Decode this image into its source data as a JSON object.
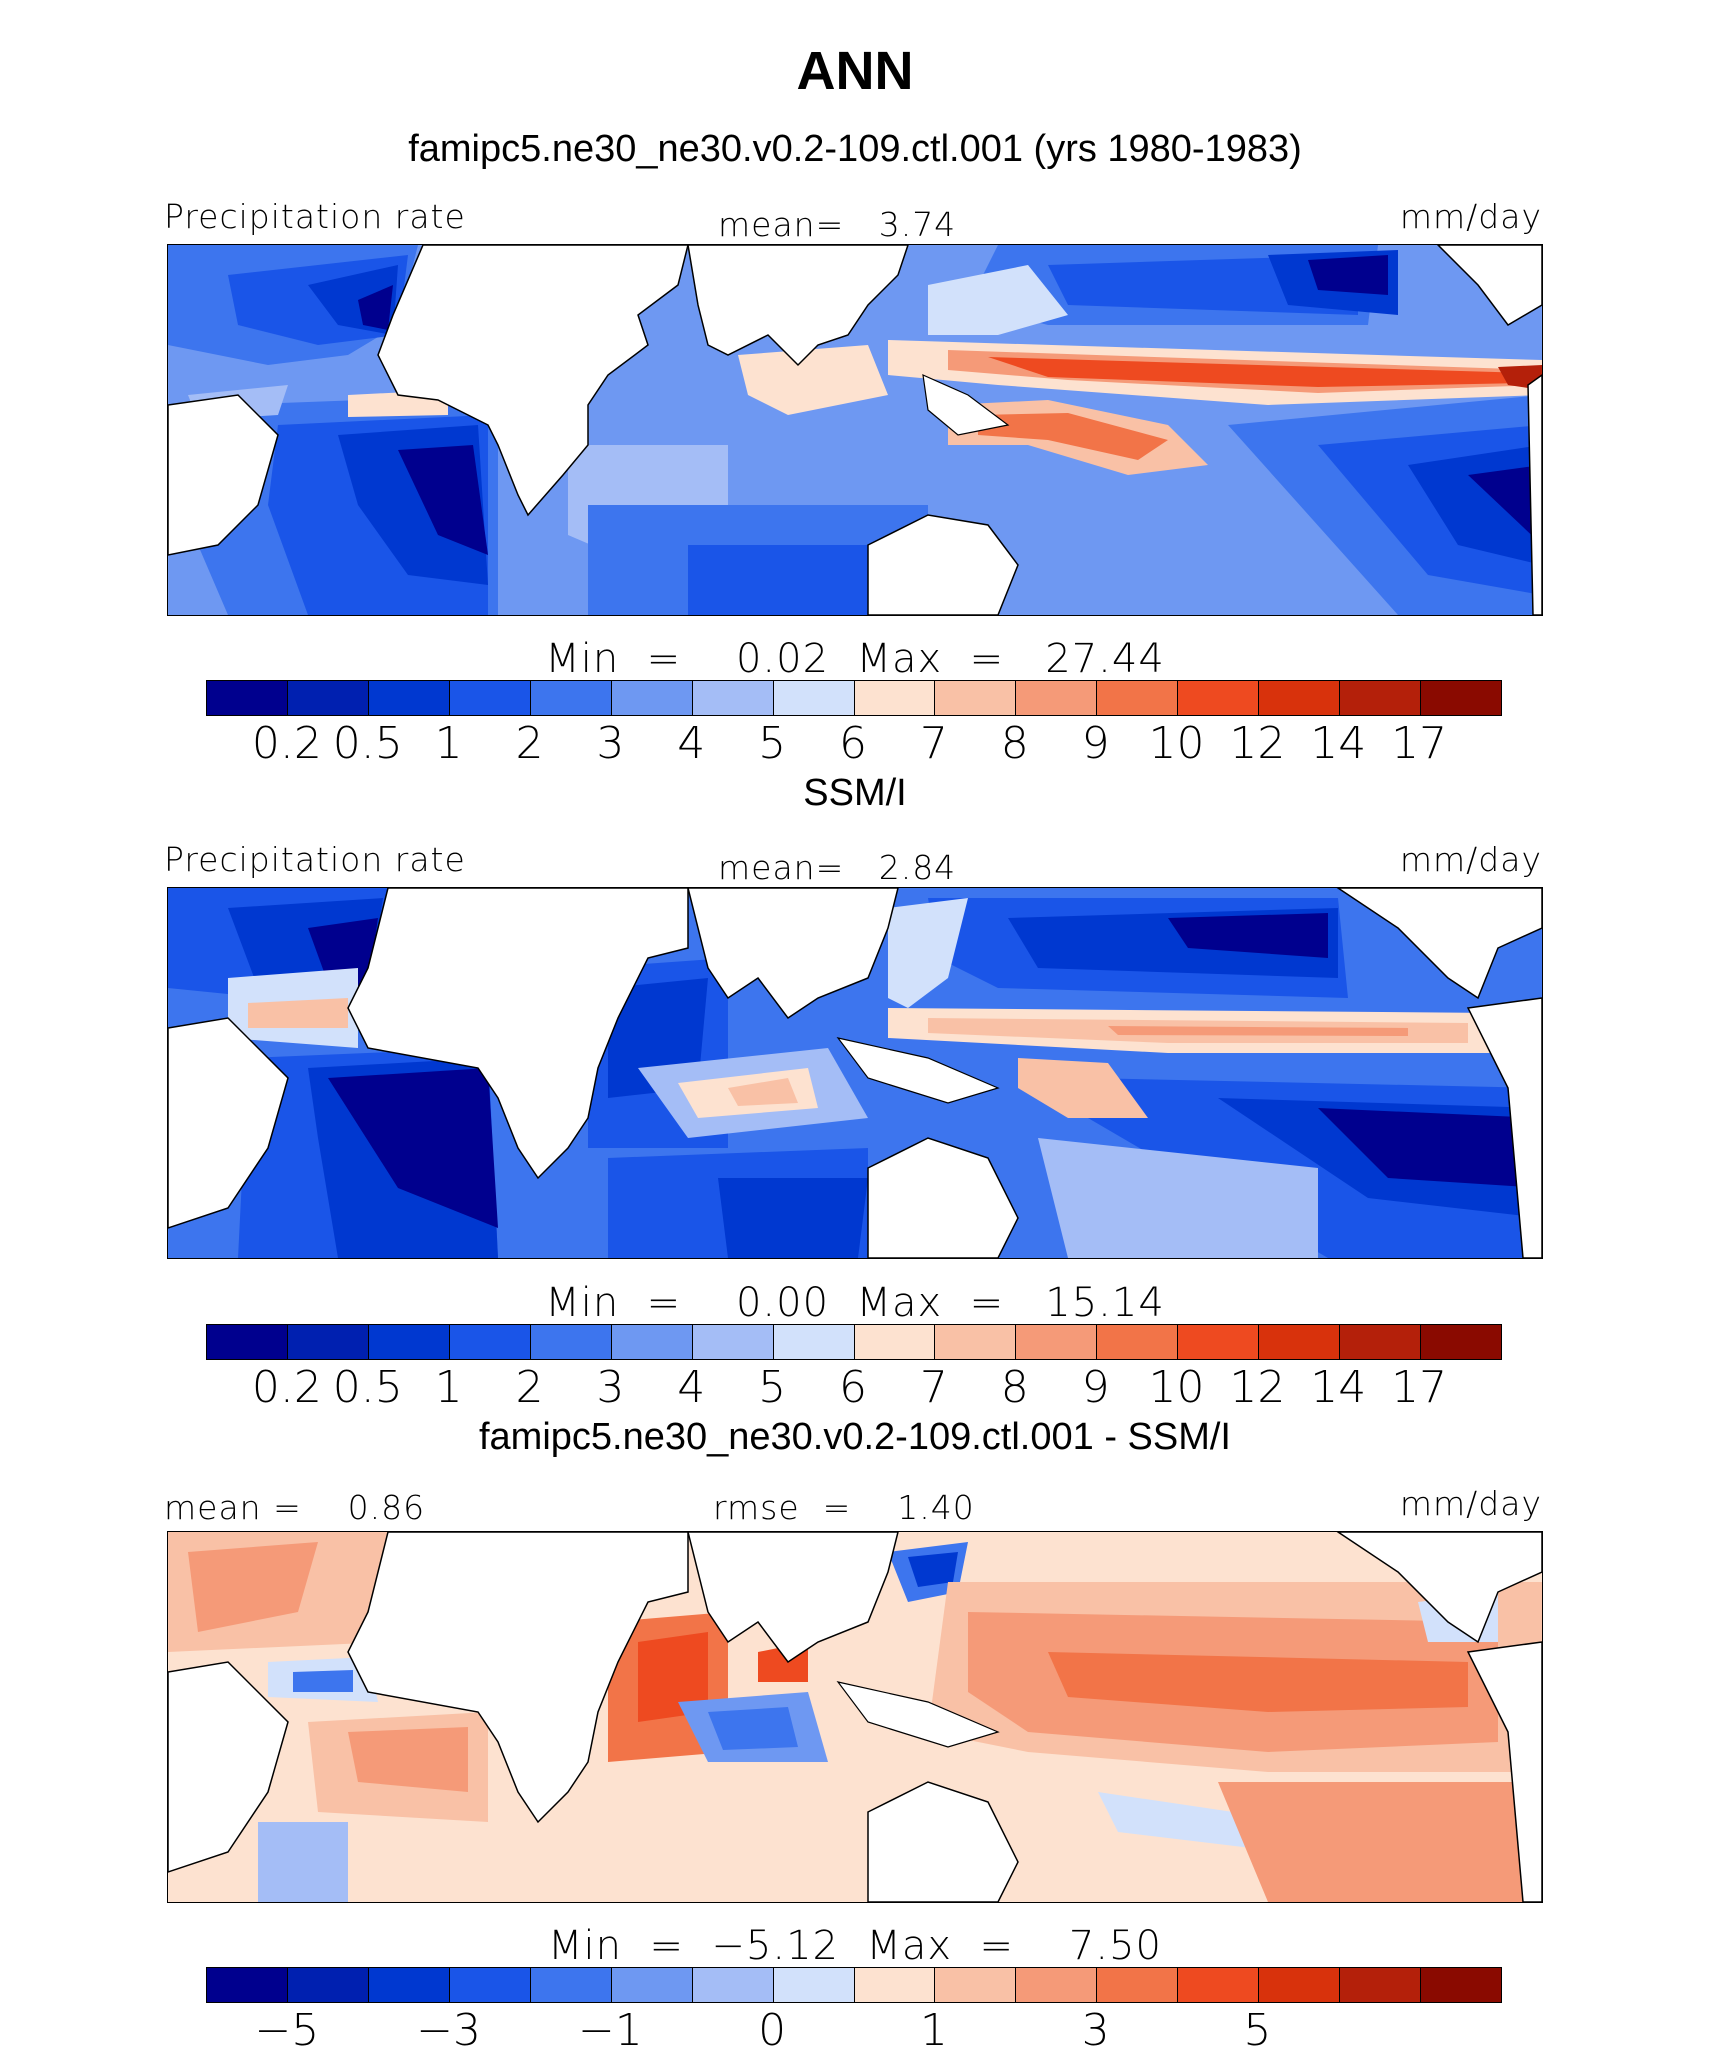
{
  "title": "ANN",
  "panels": [
    {
      "subtitle": "famipc5.ne30_ne30.v0.2-109.ctl.001 (yrs 1980-1983)",
      "left_label": "Precipitation rate",
      "center_label": "mean=   3.74",
      "right_label": "mm/day",
      "minmax": "Min  =    0.02  Max  =   27.44",
      "map_style": "model",
      "colorbar": {
        "colors": [
          "#00008e",
          "#0020b0",
          "#0038d0",
          "#1a55e8",
          "#3d75ee",
          "#6e98f2",
          "#a4bdf6",
          "#d2e1fb",
          "#fde2d0",
          "#f9c1a6",
          "#f59a78",
          "#f27448",
          "#ee4a20",
          "#d8320c",
          "#b4200a",
          "#8a0a00"
        ],
        "labels": [
          "0.2",
          "0.5",
          "1",
          "2",
          "3",
          "4",
          "5",
          "6",
          "7",
          "8",
          "9",
          "10",
          "12",
          "14",
          "17"
        ]
      }
    },
    {
      "subtitle": "SSM/I",
      "left_label": "Precipitation rate",
      "center_label": "mean=   2.84",
      "right_label": "mm/day",
      "minmax": "Min  =    0.00  Max  =   15.14",
      "map_style": "obs",
      "colorbar": {
        "colors": [
          "#00008e",
          "#0020b0",
          "#0038d0",
          "#1a55e8",
          "#3d75ee",
          "#6e98f2",
          "#a4bdf6",
          "#d2e1fb",
          "#fde2d0",
          "#f9c1a6",
          "#f59a78",
          "#f27448",
          "#ee4a20",
          "#d8320c",
          "#b4200a",
          "#8a0a00"
        ],
        "labels": [
          "0.2",
          "0.5",
          "1",
          "2",
          "3",
          "4",
          "5",
          "6",
          "7",
          "8",
          "9",
          "10",
          "12",
          "14",
          "17"
        ]
      }
    },
    {
      "subtitle": "famipc5.ne30_ne30.v0.2-109.ctl.001 - SSM/I",
      "left_label": "mean =    0.86",
      "center_label": "rmse  =    1.40",
      "right_label": "mm/day",
      "minmax": "Min  =  −5.12  Max  =    7.50",
      "map_style": "diff",
      "colorbar": {
        "colors": [
          "#00008e",
          "#0020b0",
          "#0038d0",
          "#1a55e8",
          "#3d75ee",
          "#6e98f2",
          "#a4bdf6",
          "#d2e1fb",
          "#fde2d0",
          "#f9c1a6",
          "#f59a78",
          "#f27448",
          "#ee4a20",
          "#d8320c",
          "#b4200a",
          "#8a0a00"
        ],
        "labels": [
          "−5",
          "−3",
          "−1",
          "0",
          "1",
          "3",
          "5"
        ],
        "label_boundaries": [
          1,
          3,
          5,
          7,
          9,
          11,
          13
        ]
      }
    }
  ]
}
